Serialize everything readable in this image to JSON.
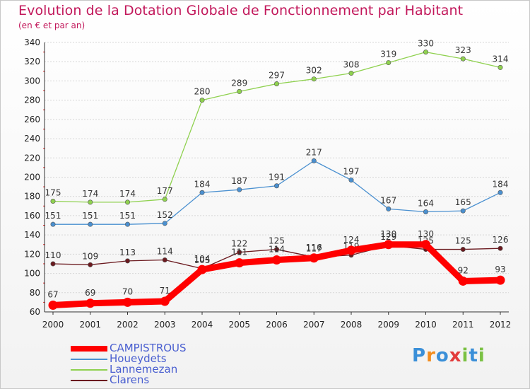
{
  "title": "Evolution de la Dotation Globale de Fonctionnement par Habitant",
  "subtitle": "(en € et par an)",
  "logo": {
    "text": "Proxiti",
    "letters": [
      "P",
      "r",
      "o",
      "x",
      "i",
      "t",
      "i"
    ],
    "colors": [
      "#3a8fd8",
      "#f28c1e",
      "#3a8fd8",
      "#e23b3b",
      "#7ac143",
      "#3a8fd8",
      "#7ac143"
    ]
  },
  "chart_data": {
    "type": "line",
    "title": "Evolution de la Dotation Globale de Fonctionnement par Habitant",
    "ylabel": "(en € et par an)",
    "xlabel": "",
    "categories": [
      "2000",
      "2001",
      "2002",
      "2003",
      "2004",
      "2005",
      "2006",
      "2007",
      "2008",
      "2009",
      "2010",
      "2011",
      "2012"
    ],
    "ylim": [
      60,
      340
    ],
    "yticks": [
      60,
      80,
      100,
      120,
      140,
      160,
      180,
      200,
      220,
      240,
      260,
      280,
      300,
      320,
      340
    ],
    "grid": "horizontal",
    "legend_position": "bottom-left",
    "series": [
      {
        "name": "Lannemezan",
        "color": "#8fd14f",
        "values": [
          175,
          174,
          174,
          177,
          280,
          289,
          297,
          302,
          308,
          319,
          330,
          323,
          314
        ]
      },
      {
        "name": "Houeydets",
        "color": "#4a90d0",
        "values": [
          151,
          151,
          151,
          152,
          184,
          187,
          191,
          217,
          197,
          167,
          164,
          165,
          184
        ]
      },
      {
        "name": "Clarens",
        "color": "#6b1a1f",
        "values": [
          110,
          109,
          113,
          114,
          105,
          122,
          125,
          117,
          119,
          129,
          125,
          125,
          126
        ]
      },
      {
        "name": "CAMPISTROUS",
        "color": "#ff0000",
        "values": [
          67,
          69,
          70,
          71,
          104,
          111,
          114,
          116,
          124,
          130,
          130,
          92,
          93
        ]
      }
    ],
    "legend_order": [
      "CAMPISTROUS",
      "Houeydets",
      "Lannemezan",
      "Clarens"
    ]
  }
}
